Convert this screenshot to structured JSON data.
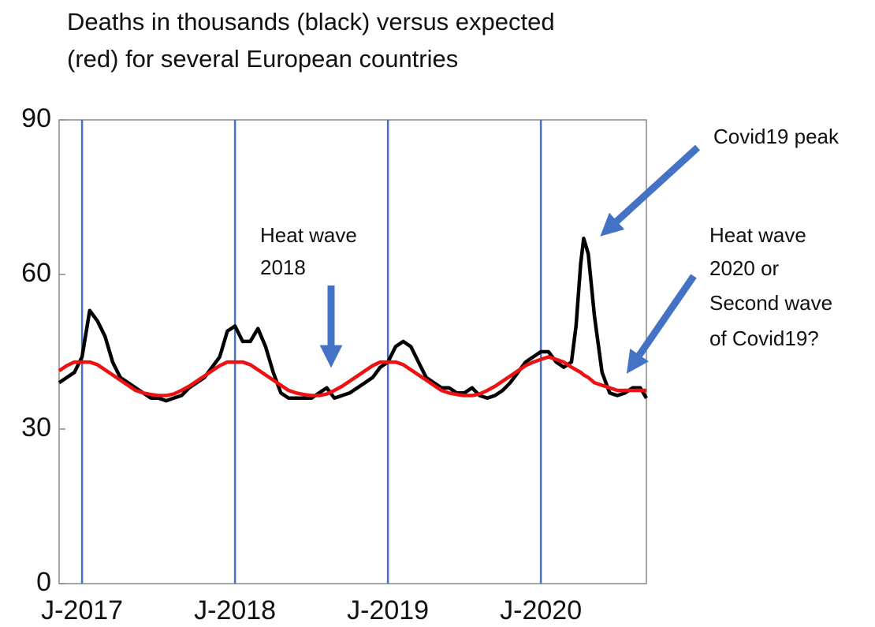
{
  "chart_data": {
    "type": "line",
    "title": [
      "Deaths in thousands  (black) versus expected",
      "(red) for several European countries"
    ],
    "annotations": [
      [
        "Covid19 peak"
      ],
      [
        "Heat wave",
        "2018"
      ],
      [
        "Heat wave",
        "2020 or",
        "Second wave",
        "of Covid19?"
      ]
    ],
    "x": [
      2016.85,
      2016.9,
      2016.95,
      2017,
      2017.05,
      2017.1,
      2017.15,
      2017.2,
      2017.25,
      2017.3,
      2017.35,
      2017.4,
      2017.45,
      2017.5,
      2017.55,
      2017.6,
      2017.65,
      2017.7,
      2017.75,
      2017.8,
      2017.85,
      2017.9,
      2017.95,
      2018,
      2018.05,
      2018.1,
      2018.15,
      2018.2,
      2018.25,
      2018.3,
      2018.35,
      2018.4,
      2018.45,
      2018.5,
      2018.55,
      2018.6,
      2018.65,
      2018.7,
      2018.75,
      2018.8,
      2018.85,
      2018.9,
      2018.95,
      2019,
      2019.05,
      2019.1,
      2019.15,
      2019.2,
      2019.25,
      2019.3,
      2019.35,
      2019.4,
      2019.45,
      2019.5,
      2019.55,
      2019.6,
      2019.65,
      2019.7,
      2019.75,
      2019.8,
      2019.85,
      2019.9,
      2019.95,
      2020,
      2020.05,
      2020.1,
      2020.15,
      2020.2,
      2020.23,
      2020.26,
      2020.28,
      2020.31,
      2020.35,
      2020.4,
      2020.45,
      2020.5,
      2020.55,
      2020.6,
      2020.65,
      2020.69
    ],
    "series": [
      {
        "color": "#000000",
        "values": [
          39,
          40,
          41,
          44,
          53,
          51,
          48,
          43,
          40,
          39,
          38,
          37,
          36,
          36,
          35.5,
          36,
          36.5,
          38,
          39,
          40,
          42,
          44,
          49,
          50,
          47,
          47,
          49.5,
          46,
          41,
          37,
          36,
          36,
          36,
          36,
          37,
          38,
          36,
          36.5,
          37,
          38,
          39,
          40,
          42,
          43,
          46,
          47,
          46,
          43,
          40,
          39,
          38,
          38,
          37,
          37,
          38,
          36.5,
          36,
          36.5,
          37.5,
          39,
          41,
          43,
          44,
          45,
          45,
          43,
          42,
          43,
          50,
          62,
          67,
          64,
          52,
          41,
          37,
          36.5,
          37,
          38,
          38,
          36
        ]
      },
      {
        "color": "#ee1111",
        "values": [
          41.3,
          42.3,
          43,
          43,
          43,
          42.5,
          41.5,
          40.5,
          39.5,
          38.5,
          37.5,
          37,
          36.7,
          36.5,
          36.5,
          36.8,
          37.5,
          38.3,
          39.3,
          40.3,
          41.3,
          42.3,
          43,
          43,
          43,
          42.5,
          41.5,
          40.5,
          39.5,
          38.5,
          37.5,
          37,
          36.7,
          36.5,
          36.5,
          36.8,
          37.5,
          38.3,
          39.3,
          40.3,
          41.3,
          42.3,
          43,
          43,
          43,
          42.5,
          41.5,
          40.5,
          39.5,
          38.5,
          37.5,
          37,
          36.7,
          36.5,
          36.5,
          36.8,
          37.5,
          38.3,
          39.3,
          40.3,
          41.3,
          42.3,
          43,
          43.5,
          44,
          43.5,
          43,
          42,
          41.5,
          41,
          40.5,
          40,
          39,
          38.5,
          38,
          37.5,
          37.5,
          37.5,
          37.5,
          37.5
        ]
      }
    ],
    "xlim": [
      2016.85,
      2020.69
    ],
    "ylim": [
      0,
      90
    ],
    "xticks": [
      {
        "value": 2017,
        "label": "J-2017"
      },
      {
        "value": 2018,
        "label": "J-2018"
      },
      {
        "value": 2019,
        "label": "J-2019"
      },
      {
        "value": 2020,
        "label": "J-2020"
      }
    ],
    "yticks": [
      0,
      30,
      60,
      90
    ],
    "grid_color": "#4472c4"
  }
}
